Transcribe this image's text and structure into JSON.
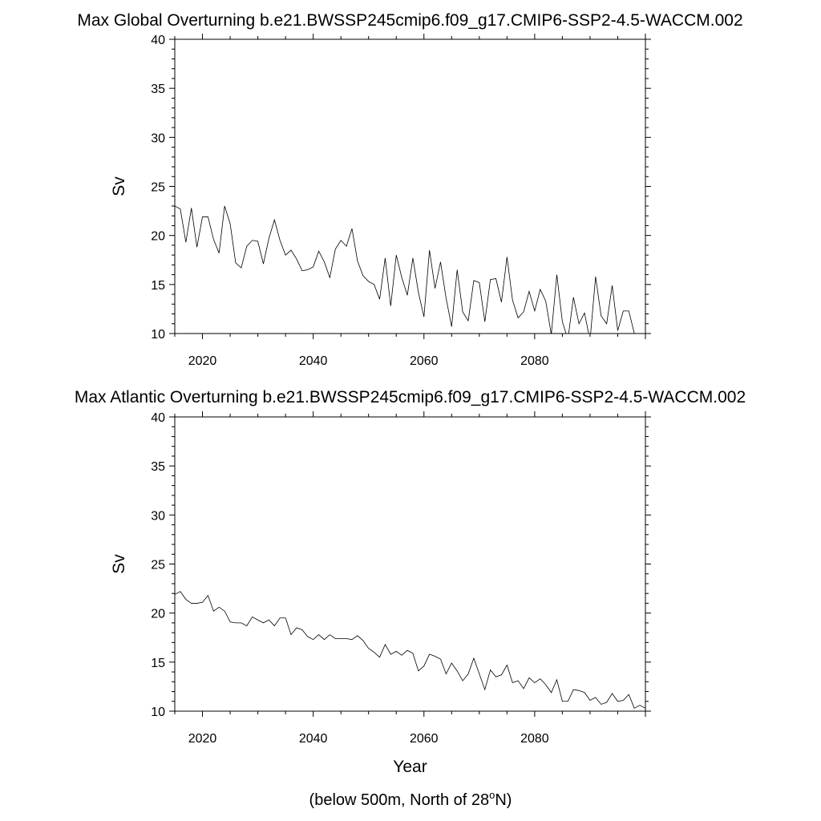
{
  "chart_data": [
    {
      "type": "line",
      "title": "Max Global Overturning b.e21.BWSSP245cmip6.f09_g17.CMIP6-SSP2-4.5-WACCM.002",
      "xlabel": "",
      "ylabel": "Sv",
      "xlim": [
        2015,
        2100
      ],
      "ylim": [
        10,
        40
      ],
      "x_ticks": [
        2020,
        2040,
        2060,
        2080
      ],
      "x_tick_labels": [
        "2020",
        "2040",
        "2060",
        "2080"
      ],
      "y_ticks": [
        10,
        15,
        20,
        25,
        30,
        35,
        40
      ],
      "y_tick_labels": [
        "10",
        "15",
        "20",
        "25",
        "30",
        "35",
        "40"
      ],
      "grid": false,
      "color": "#000000",
      "x": [
        2015,
        2016,
        2017,
        2018,
        2019,
        2020,
        2021,
        2022,
        2023,
        2024,
        2025,
        2026,
        2027,
        2028,
        2029,
        2030,
        2031,
        2032,
        2033,
        2034,
        2035,
        2036,
        2037,
        2038,
        2039,
        2040,
        2041,
        2042,
        2043,
        2044,
        2045,
        2046,
        2047,
        2048,
        2049,
        2050,
        2051,
        2052,
        2053,
        2054,
        2055,
        2056,
        2057,
        2058,
        2059,
        2060,
        2061,
        2062,
        2063,
        2064,
        2065,
        2066,
        2067,
        2068,
        2069,
        2070,
        2071,
        2072,
        2073,
        2074,
        2075,
        2076,
        2077,
        2078,
        2079,
        2080,
        2081,
        2082,
        2083,
        2084,
        2085,
        2086,
        2087,
        2088,
        2089,
        2090,
        2091,
        2092,
        2093,
        2094,
        2095,
        2096,
        2097,
        2098,
        2099
      ],
      "y": [
        23.0,
        22.7,
        19.3,
        22.8,
        18.8,
        21.9,
        21.9,
        19.6,
        18.2,
        23.0,
        21.2,
        17.2,
        16.7,
        18.9,
        19.5,
        19.4,
        17.1,
        19.7,
        21.6,
        19.5,
        18.0,
        18.5,
        17.6,
        16.4,
        16.5,
        16.8,
        18.4,
        17.3,
        15.7,
        18.6,
        19.5,
        18.9,
        20.7,
        17.4,
        15.9,
        15.3,
        15.0,
        13.5,
        17.7,
        12.8,
        18.0,
        15.7,
        13.9,
        17.7,
        14.2,
        11.7,
        18.5,
        14.6,
        17.3,
        13.6,
        10.7,
        16.5,
        12.2,
        11.3,
        15.4,
        15.2,
        11.2,
        15.5,
        15.6,
        13.2,
        17.8,
        13.4,
        11.6,
        12.2,
        14.3,
        12.3,
        14.5,
        13.3,
        9.9,
        16.0,
        11.2,
        9.4,
        13.7,
        11.0,
        12.1,
        9.3,
        15.8,
        11.8,
        11.0,
        14.9,
        10.3,
        12.3,
        12.3,
        10.0,
        10.0
      ]
    },
    {
      "type": "line",
      "title": "Max Atlantic Overturning b.e21.BWSSP245cmip6.f09_g17.CMIP6-SSP2-4.5-WACCM.002",
      "xlabel": "Year",
      "ylabel": "Sv",
      "xlim": [
        2015,
        2100
      ],
      "ylim": [
        10,
        40
      ],
      "x_ticks": [
        2020,
        2040,
        2060,
        2080
      ],
      "x_tick_labels": [
        "2020",
        "2040",
        "2060",
        "2080"
      ],
      "y_ticks": [
        10,
        15,
        20,
        25,
        30,
        35,
        40
      ],
      "y_tick_labels": [
        "10",
        "15",
        "20",
        "25",
        "30",
        "35",
        "40"
      ],
      "grid": false,
      "color": "#000000",
      "x": [
        2015,
        2016,
        2017,
        2018,
        2019,
        2020,
        2021,
        2022,
        2023,
        2024,
        2025,
        2026,
        2027,
        2028,
        2029,
        2030,
        2031,
        2032,
        2033,
        2034,
        2035,
        2036,
        2037,
        2038,
        2039,
        2040,
        2041,
        2042,
        2043,
        2044,
        2045,
        2046,
        2047,
        2048,
        2049,
        2050,
        2051,
        2052,
        2053,
        2054,
        2055,
        2056,
        2057,
        2058,
        2059,
        2060,
        2061,
        2062,
        2063,
        2064,
        2065,
        2066,
        2067,
        2068,
        2069,
        2070,
        2071,
        2072,
        2073,
        2074,
        2075,
        2076,
        2077,
        2078,
        2079,
        2080,
        2081,
        2082,
        2083,
        2084,
        2085,
        2086,
        2087,
        2088,
        2089,
        2090,
        2091,
        2092,
        2093,
        2094,
        2095,
        2096,
        2097,
        2098,
        2099,
        2100
      ],
      "y": [
        21.9,
        22.2,
        21.4,
        21.0,
        21.0,
        21.1,
        21.8,
        20.2,
        20.6,
        20.2,
        19.1,
        19.0,
        19.0,
        18.7,
        19.6,
        19.3,
        19.0,
        19.3,
        18.7,
        19.5,
        19.5,
        17.8,
        18.5,
        18.3,
        17.6,
        17.3,
        17.8,
        17.3,
        17.8,
        17.4,
        17.4,
        17.4,
        17.3,
        17.7,
        17.2,
        16.4,
        16.0,
        15.5,
        16.8,
        15.8,
        16.1,
        15.7,
        16.2,
        15.9,
        14.1,
        14.6,
        15.8,
        15.6,
        15.3,
        13.8,
        14.9,
        14.1,
        13.1,
        13.8,
        15.4,
        13.8,
        12.2,
        14.2,
        13.5,
        13.7,
        14.7,
        12.9,
        13.1,
        12.3,
        13.4,
        12.9,
        13.3,
        12.7,
        11.9,
        13.2,
        11.0,
        11.0,
        12.2,
        12.1,
        11.9,
        11.1,
        11.4,
        10.7,
        10.9,
        11.8,
        11.0,
        11.1,
        11.7,
        10.3,
        10.6,
        10.3
      ]
    }
  ],
  "footnote": {
    "prefix": "(below 500m, North of 28",
    "superscript": "o",
    "suffix": "N)"
  }
}
